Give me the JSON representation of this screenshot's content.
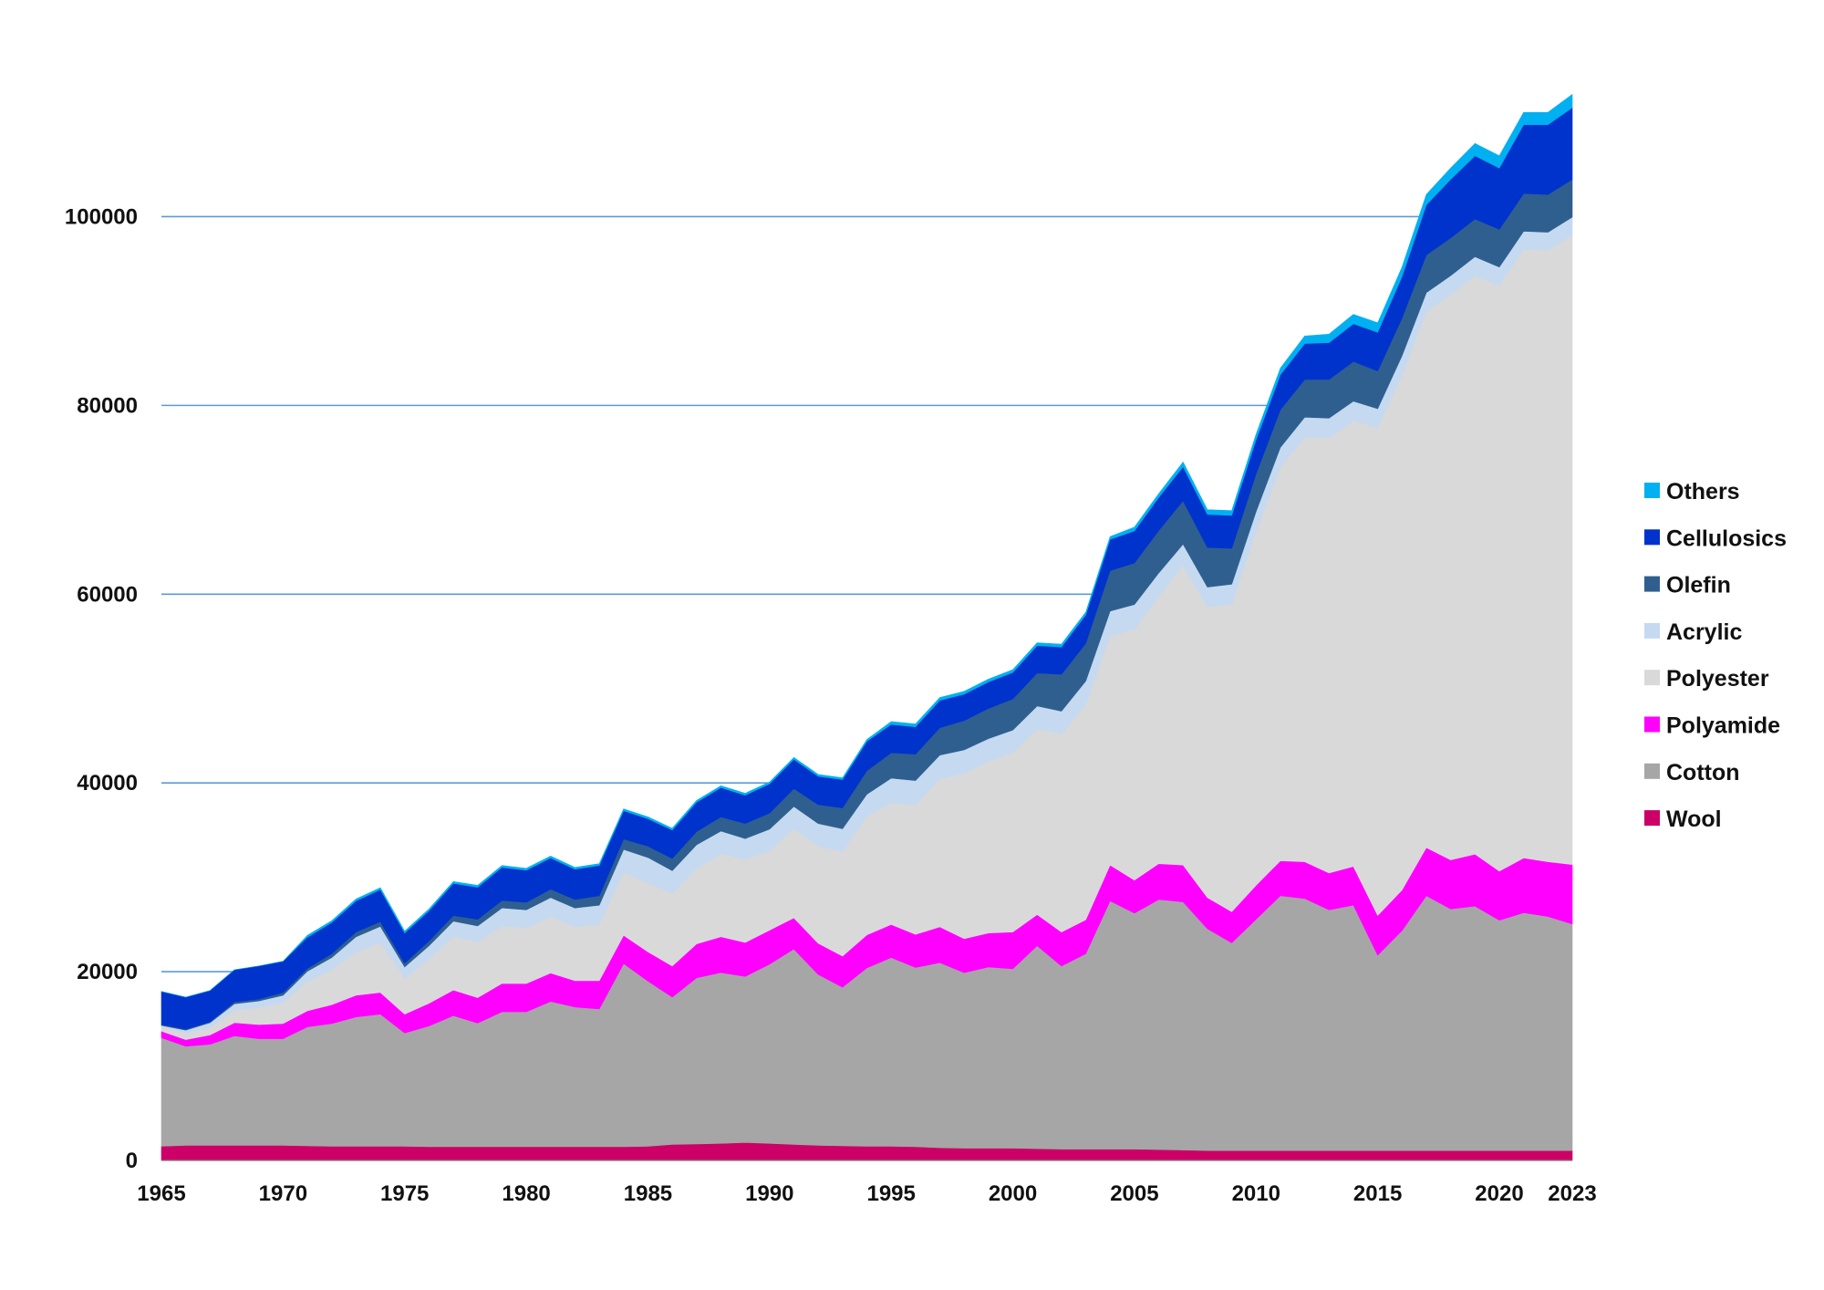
{
  "chart_data": {
    "type": "area",
    "stacked": true,
    "title": "",
    "xlabel": "",
    "ylabel": "",
    "ylim": [
      0,
      110000
    ],
    "y_ticks": [
      0,
      20000,
      40000,
      60000,
      80000,
      100000
    ],
    "y_tick_labels": [
      "0",
      "20000",
      "40000",
      "60000",
      "80000",
      "100000"
    ],
    "x_ticks": [
      1965,
      1970,
      1975,
      1980,
      1985,
      1990,
      1995,
      2000,
      2005,
      2010,
      2015,
      2020,
      2023
    ],
    "x_tick_labels": [
      "1965",
      "1970",
      "1975",
      "1980",
      "1985",
      "1990",
      "1995",
      "2000",
      "2005",
      "2010",
      "2015",
      "2020",
      "2023"
    ],
    "grid": "horizontal",
    "legend_position": "right",
    "x": [
      1965,
      1966,
      1967,
      1968,
      1969,
      1970,
      1971,
      1972,
      1973,
      1974,
      1975,
      1976,
      1977,
      1978,
      1979,
      1980,
      1981,
      1982,
      1983,
      1984,
      1985,
      1986,
      1987,
      1988,
      1989,
      1990,
      1991,
      1992,
      1993,
      1994,
      1995,
      1996,
      1997,
      1998,
      1999,
      2000,
      2001,
      2002,
      2003,
      2004,
      2005,
      2006,
      2007,
      2008,
      2009,
      2010,
      2011,
      2012,
      2013,
      2014,
      2015,
      2016,
      2017,
      2018,
      2019,
      2020,
      2021,
      2022,
      2023
    ],
    "series": [
      {
        "name": "Wool",
        "color": "#cc0066",
        "values": [
          1500,
          1600,
          1600,
          1600,
          1600,
          1600,
          1550,
          1500,
          1500,
          1500,
          1500,
          1450,
          1450,
          1450,
          1450,
          1450,
          1450,
          1450,
          1450,
          1450,
          1500,
          1700,
          1750,
          1800,
          1900,
          1800,
          1700,
          1600,
          1550,
          1500,
          1500,
          1450,
          1350,
          1300,
          1300,
          1300,
          1250,
          1200,
          1200,
          1200,
          1200,
          1150,
          1100,
          1050,
          1050,
          1050,
          1050,
          1050,
          1050,
          1050,
          1050,
          1050,
          1050,
          1050,
          1050,
          1050,
          1050,
          1050,
          1050
        ]
      },
      {
        "name": "Cotton",
        "color": "#a6a6a6",
        "values": [
          11500,
          10500,
          10700,
          11600,
          11300,
          11300,
          12600,
          13000,
          13700,
          14000,
          12000,
          12800,
          13900,
          13100,
          14300,
          14300,
          15400,
          14800,
          14600,
          19400,
          17500,
          15600,
          17600,
          18100,
          17600,
          19000,
          20700,
          18100,
          16800,
          18900,
          20000,
          19000,
          19600,
          18600,
          19200,
          19000,
          21500,
          19400,
          20700,
          26300,
          25000,
          26500,
          26300,
          23500,
          22000,
          24500,
          27000,
          26700,
          25500,
          26000,
          20700,
          23300,
          27000,
          25600,
          25900,
          24400,
          25200,
          24800,
          24000
        ]
      },
      {
        "name": "Polyamide",
        "color": "#ff00ff",
        "values": [
          700,
          700,
          1000,
          1400,
          1500,
          1600,
          1700,
          2000,
          2300,
          2300,
          2000,
          2400,
          2700,
          2700,
          3000,
          3000,
          3000,
          2800,
          3000,
          3000,
          3100,
          3300,
          3600,
          3800,
          3600,
          3600,
          3300,
          3300,
          3300,
          3500,
          3500,
          3500,
          3800,
          3600,
          3600,
          3900,
          3300,
          3600,
          3600,
          3800,
          3500,
          3800,
          3900,
          3300,
          3300,
          3600,
          3700,
          3900,
          3900,
          4100,
          4200,
          4300,
          5100,
          5200,
          5500,
          5200,
          5800,
          5800,
          6300
        ]
      },
      {
        "name": "Polyester",
        "color": "#d9d9d9",
        "values": [
          500,
          700,
          800,
          1300,
          1800,
          2200,
          3100,
          3700,
          4600,
          5300,
          3800,
          4700,
          5700,
          5900,
          6100,
          5900,
          6000,
          5700,
          6000,
          6700,
          7300,
          7700,
          8000,
          8800,
          8800,
          8400,
          9500,
          10300,
          11100,
          12600,
          12900,
          13700,
          15700,
          17500,
          18200,
          19000,
          19700,
          21000,
          22800,
          24300,
          26600,
          28300,
          31800,
          30800,
          32600,
          37500,
          41700,
          45000,
          46100,
          47200,
          51700,
          54600,
          56800,
          59900,
          61300,
          62100,
          64500,
          64800,
          66700
        ]
      },
      {
        "name": "Acrylic",
        "color": "#c5d9f1",
        "values": [
          100,
          300,
          500,
          700,
          700,
          800,
          1100,
          1300,
          1600,
          1700,
          1200,
          1400,
          1600,
          1700,
          1900,
          1900,
          2000,
          2000,
          2000,
          2400,
          2700,
          2400,
          2500,
          2400,
          2200,
          2300,
          2300,
          2400,
          2400,
          2300,
          2600,
          2600,
          2500,
          2500,
          2400,
          2400,
          2400,
          2400,
          2500,
          2600,
          2600,
          2500,
          2200,
          2100,
          2100,
          2100,
          2100,
          2100,
          2100,
          2100,
          2000,
          2000,
          2000,
          2000,
          2000,
          1900,
          1900,
          1900,
          1900
        ]
      },
      {
        "name": "Olefin",
        "color": "#2f5f8f",
        "values": [
          100,
          100,
          100,
          200,
          200,
          300,
          300,
          400,
          500,
          500,
          400,
          500,
          600,
          700,
          800,
          800,
          900,
          900,
          1000,
          1100,
          1200,
          1300,
          1400,
          1500,
          1600,
          1700,
          1900,
          2000,
          2200,
          2500,
          2700,
          2800,
          2900,
          3100,
          3200,
          3300,
          3500,
          3900,
          4000,
          4300,
          4400,
          4500,
          4600,
          4200,
          3800,
          4000,
          4000,
          4000,
          4100,
          4200,
          4000,
          4000,
          4000,
          4000,
          4000,
          4000,
          4000,
          4000,
          4000
        ]
      },
      {
        "name": "Cellulosics",
        "color": "#0033cc",
        "values": [
          3500,
          3400,
          3300,
          3400,
          3500,
          3300,
          3300,
          3300,
          3300,
          3400,
          3200,
          3200,
          3400,
          3400,
          3500,
          3400,
          3300,
          3200,
          3200,
          3000,
          2900,
          3000,
          3100,
          3100,
          3000,
          3100,
          3100,
          3000,
          3000,
          3100,
          3000,
          2900,
          2900,
          2800,
          2800,
          2800,
          2900,
          2900,
          3000,
          3300,
          3400,
          3500,
          3600,
          3500,
          3500,
          3600,
          3700,
          3800,
          3900,
          4000,
          4100,
          4400,
          5300,
          6200,
          6700,
          6500,
          7300,
          7400,
          7600
        ]
      },
      {
        "name": "Others",
        "color": "#00b0f0",
        "values": [
          0,
          0,
          0,
          0,
          0,
          0,
          200,
          200,
          200,
          200,
          200,
          200,
          200,
          200,
          200,
          200,
          200,
          200,
          200,
          200,
          200,
          200,
          200,
          200,
          200,
          200,
          200,
          200,
          200,
          200,
          300,
          300,
          300,
          300,
          300,
          300,
          300,
          300,
          300,
          300,
          400,
          400,
          500,
          500,
          500,
          600,
          700,
          800,
          900,
          1000,
          1000,
          1000,
          1100,
          1200,
          1300,
          1300,
          1300,
          1300,
          1400
        ]
      }
    ],
    "legend_order": [
      "Others",
      "Cellulosics",
      "Olefin",
      "Acrylic",
      "Polyester",
      "Polyamide",
      "Cotton",
      "Wool"
    ]
  }
}
